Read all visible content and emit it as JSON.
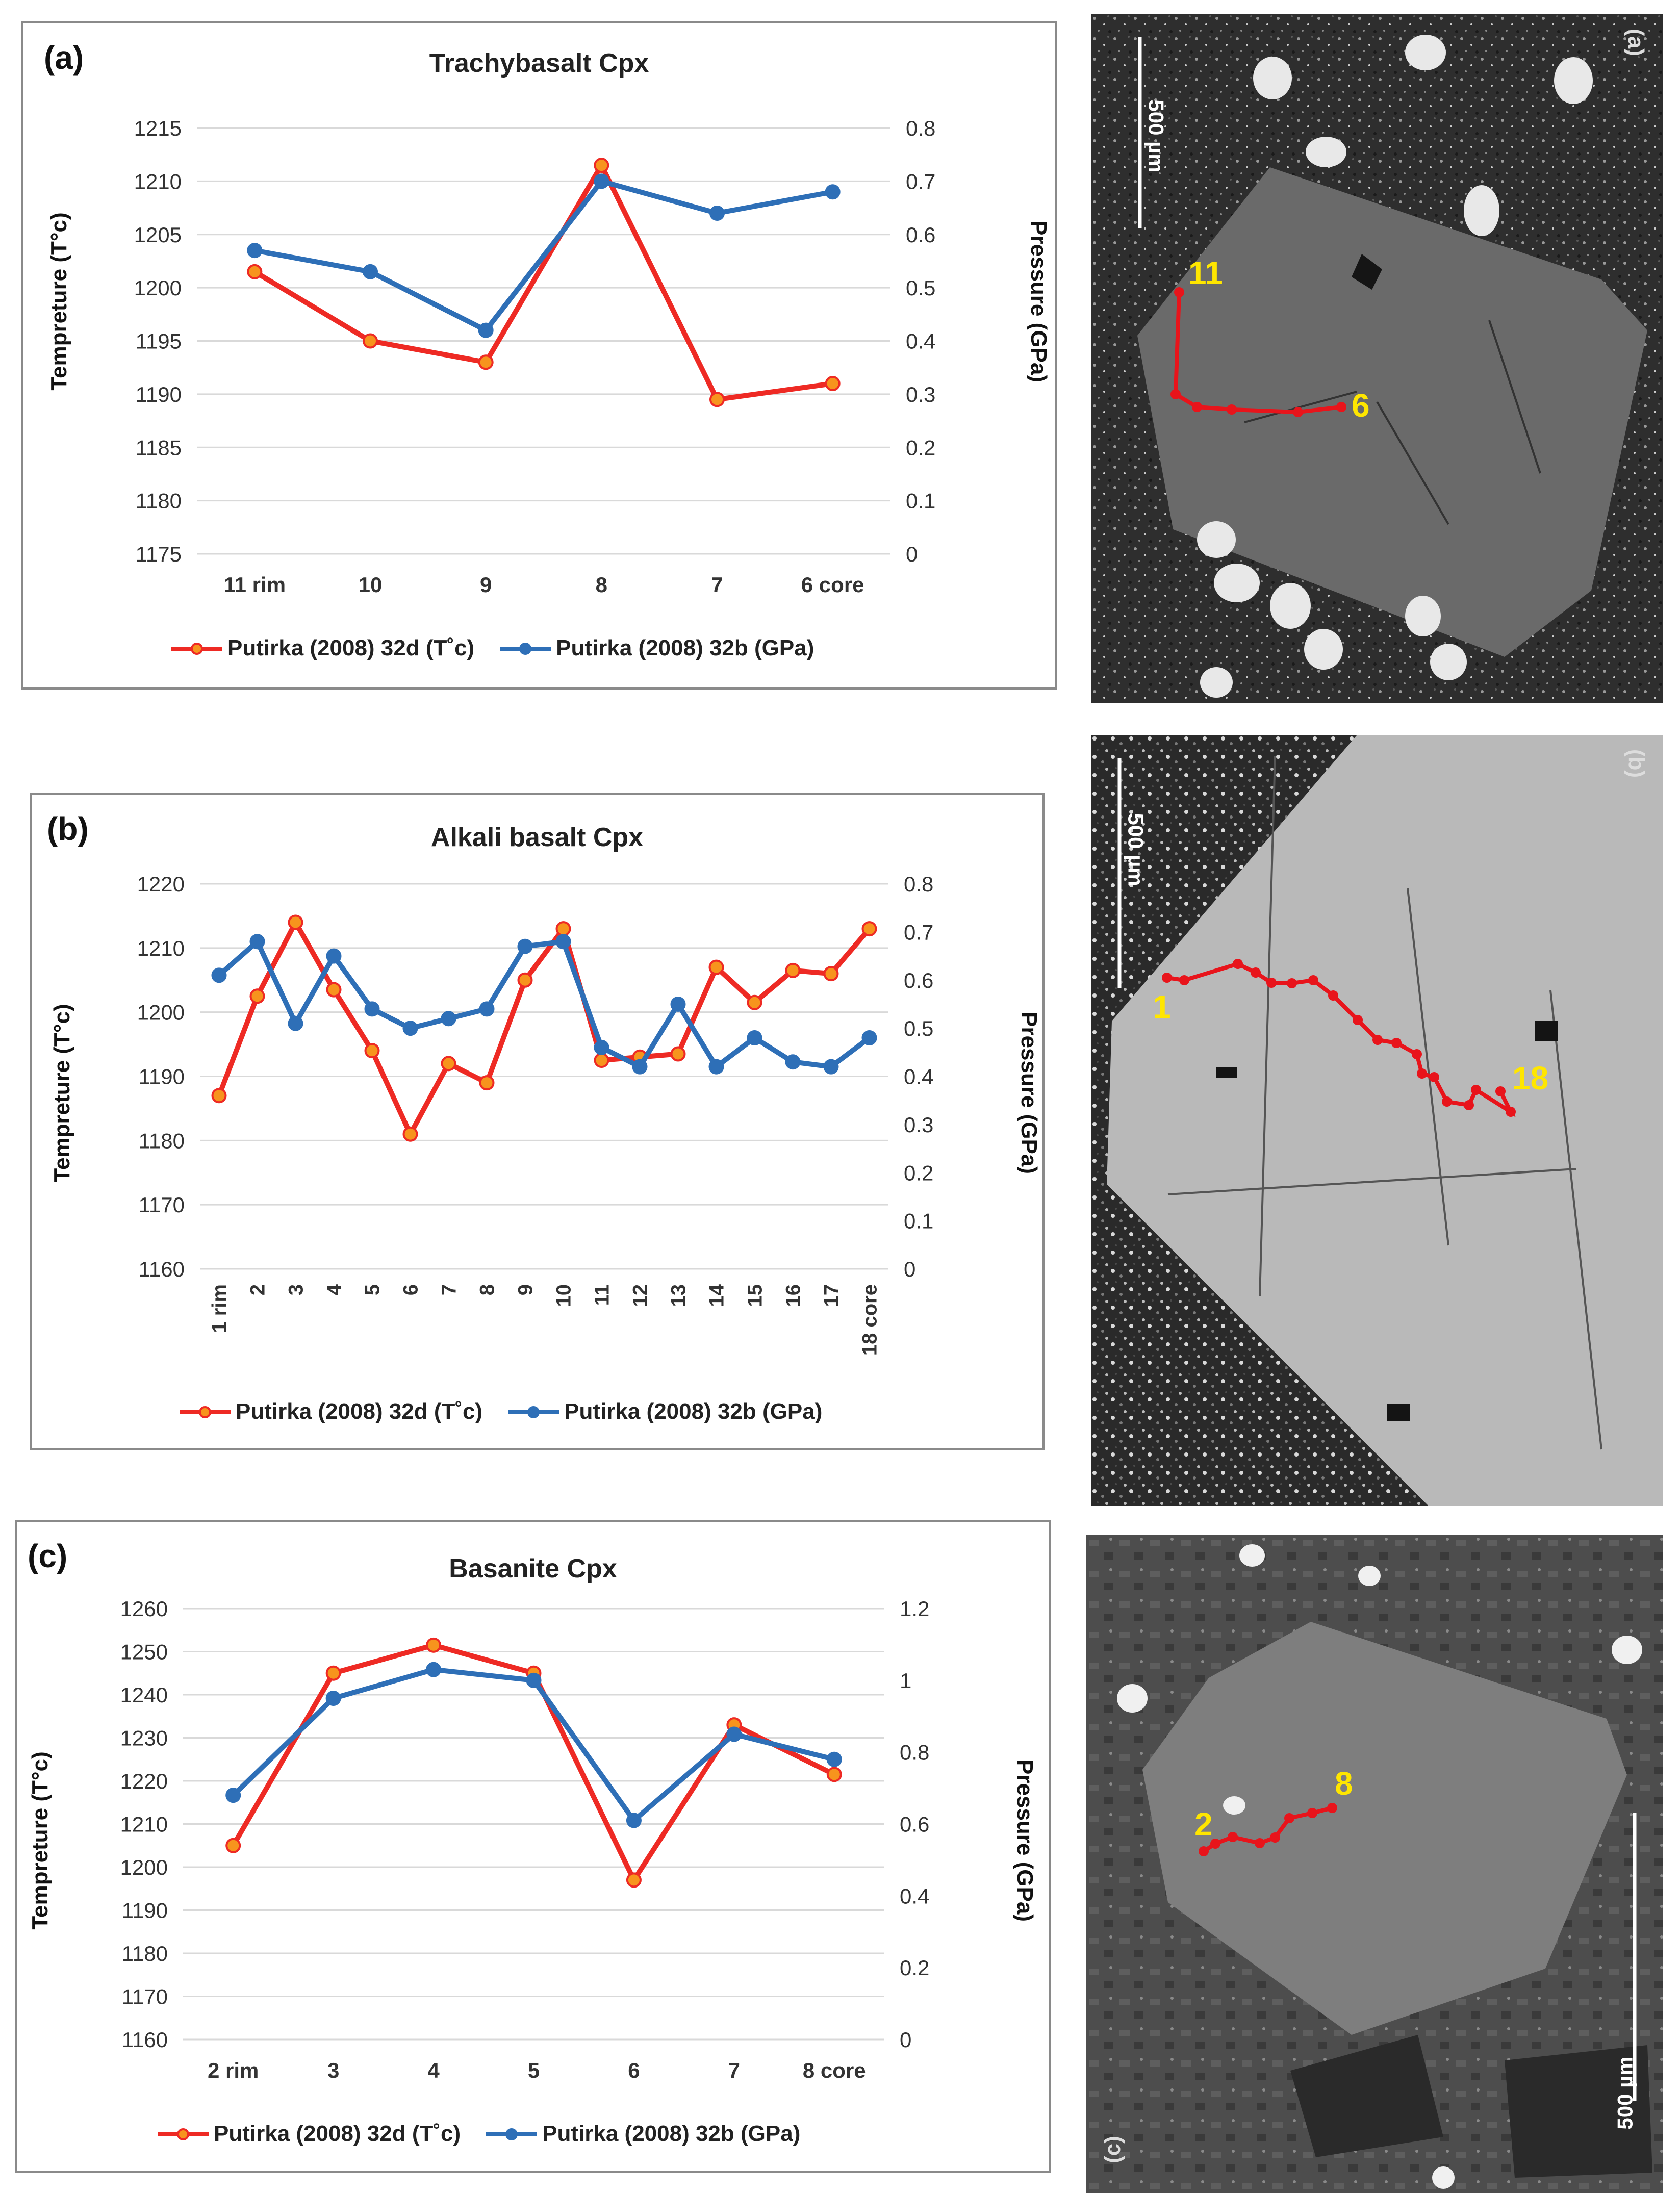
{
  "colors": {
    "temp": "#ee2a24",
    "temp_marker": "#f7941d",
    "pressure": "#2e6fb7",
    "trace": "#e8141b",
    "point_label": "#ffe600"
  },
  "charts": [
    {
      "panel_label": "(a)",
      "title": "Trachybasalt Cpx",
      "ylabel_left": "Tempreture (T°c)",
      "ylabel_right": "Pressure (GPa)",
      "legend": [
        "Putirka (2008) 32d (T˚c)",
        "Putirka (2008) 32b (GPa)"
      ]
    },
    {
      "panel_label": "(b)",
      "title": "Alkali basalt Cpx",
      "ylabel_left": "Tempreture (T°c)",
      "ylabel_right": "Pressure (GPa)",
      "legend": [
        "Putirka (2008) 32d (T˚c)",
        "Putirka (2008) 32b (GPa)"
      ]
    },
    {
      "panel_label": "(c)",
      "title": "Basanite Cpx",
      "ylabel_left": "Tempreture (T°c)",
      "ylabel_right": "Pressure (GPa)",
      "legend": [
        "Putirka (2008) 32d (T˚c)",
        "Putirka (2008) 32b (GPa)"
      ]
    }
  ],
  "chart_data": [
    {
      "type": "line",
      "title": "Trachybasalt Cpx",
      "categories": [
        "11 rim",
        "10",
        "9",
        "8",
        "7",
        "6 core"
      ],
      "xlabel": "",
      "ylabel": "Tempreture (T°c)",
      "y2label": "Pressure (GPa)",
      "ylim": [
        1175,
        1215
      ],
      "yticks": [
        1175,
        1180,
        1185,
        1190,
        1195,
        1200,
        1205,
        1210,
        1215
      ],
      "y2lim": [
        0,
        0.8
      ],
      "y2ticks": [
        "0",
        "0.1",
        "0.2",
        "0.3",
        "0.4",
        "0.5",
        "0.6",
        "0.7",
        "0.8"
      ],
      "series": [
        {
          "name": "Putirka (2008) 32d (T˚c)",
          "axis": "left",
          "values": [
            1201.5,
            1195,
            1193,
            1211.5,
            1189.5,
            1191
          ]
        },
        {
          "name": "Putirka (2008) 32b (GPa)",
          "axis": "right",
          "values": [
            0.57,
            0.53,
            0.42,
            0.7,
            0.64,
            0.68
          ]
        }
      ],
      "legend_position": "bottom"
    },
    {
      "type": "line",
      "title": "Alkali basalt Cpx",
      "categories": [
        "1 rim",
        "2",
        "3",
        "4",
        "5",
        "6",
        "7",
        "8",
        "9",
        "10",
        "11",
        "12",
        "13",
        "14",
        "15",
        "16",
        "17",
        "18 core"
      ],
      "xlabel": "",
      "ylabel": "Tempreture (T°c)",
      "y2label": "Pressure (GPa)",
      "ylim": [
        1160,
        1220
      ],
      "yticks": [
        1160,
        1170,
        1180,
        1190,
        1200,
        1210,
        1220
      ],
      "y2lim": [
        0,
        0.8
      ],
      "y2ticks": [
        "0",
        "0.1",
        "0.2",
        "0.3",
        "0.4",
        "0.5",
        "0.6",
        "0.7",
        "0.8"
      ],
      "series": [
        {
          "name": "Putirka (2008) 32d (T˚c)",
          "axis": "left",
          "values": [
            1187,
            1202.5,
            1214,
            1203.5,
            1194,
            1181,
            1192,
            1189,
            1205,
            1213,
            1192.5,
            1193,
            1193.5,
            1207,
            1201.5,
            1206.5,
            1206,
            1213
          ]
        },
        {
          "name": "Putirka (2008) 32b (GPa)",
          "axis": "right",
          "values": [
            0.61,
            0.68,
            0.51,
            0.65,
            0.54,
            0.5,
            0.52,
            0.54,
            0.67,
            0.68,
            0.46,
            0.42,
            0.55,
            0.42,
            0.48,
            0.43,
            0.42,
            0.48
          ]
        }
      ],
      "legend_position": "bottom"
    },
    {
      "type": "line",
      "title": "Basanite Cpx",
      "categories": [
        "2 rim",
        "3",
        "4",
        "5",
        "6",
        "7",
        "8 core"
      ],
      "xlabel": "",
      "ylabel": "Tempreture (T°c)",
      "y2label": "Pressure (GPa)",
      "ylim": [
        1160,
        1260
      ],
      "yticks": [
        1160,
        1170,
        1180,
        1190,
        1200,
        1210,
        1220,
        1230,
        1240,
        1250,
        1260
      ],
      "y2lim": [
        0,
        1.2
      ],
      "y2ticks": [
        "0",
        "0.2",
        "0.4",
        "0.6",
        "0.8",
        "1",
        "1.2"
      ],
      "series": [
        {
          "name": "Putirka (2008) 32d (T˚c)",
          "axis": "left",
          "values": [
            1205,
            1245,
            1251.5,
            1245,
            1197,
            1233,
            1221.5
          ]
        },
        {
          "name": "Putirka (2008) 32b (GPa)",
          "axis": "right",
          "values": [
            0.68,
            0.95,
            1.03,
            1.0,
            0.61,
            0.85,
            0.78
          ]
        }
      ],
      "legend_position": "bottom"
    }
  ],
  "images": [
    {
      "panel_tag": "(a)",
      "scale": "500 µm",
      "labels": [
        "11",
        "6"
      ]
    },
    {
      "panel_tag": "(b)",
      "scale": "500 µm",
      "labels": [
        "1",
        "18"
      ]
    },
    {
      "panel_tag": "(c)",
      "scale": "500 µm",
      "labels": [
        "2",
        "8"
      ]
    }
  ]
}
